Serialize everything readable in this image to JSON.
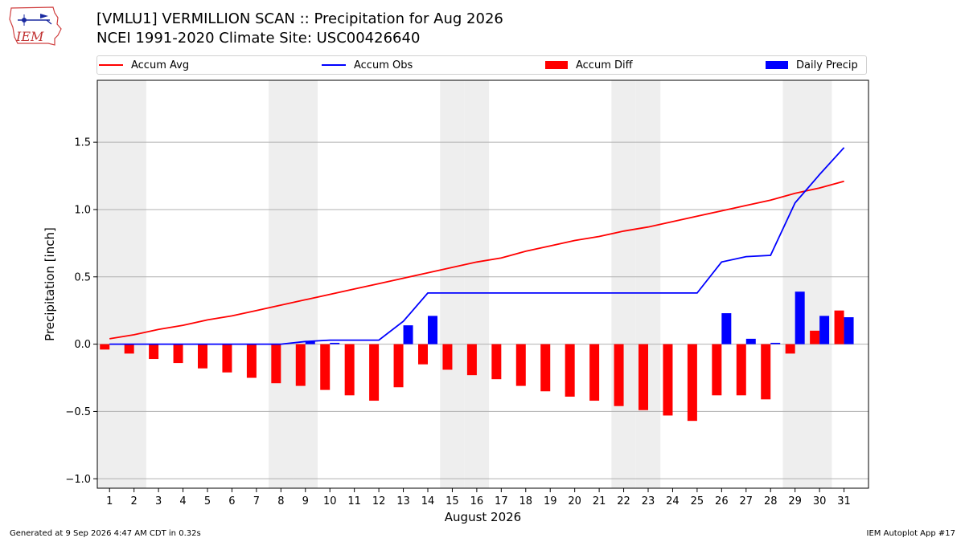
{
  "header": {
    "logo_text": "IEM",
    "title_line1": "[VMLU1] VERMILLION SCAN :: Precipitation for Aug 2026",
    "title_line2": "NCEI 1991-2020 Climate Site: USC00426640"
  },
  "legend": {
    "items": [
      {
        "label": "Accum Avg",
        "kind": "line",
        "color": "#ff0000"
      },
      {
        "label": "Accum Obs",
        "kind": "line",
        "color": "#0000ff"
      },
      {
        "label": "Accum Diff",
        "kind": "patch",
        "color": "#ff0000"
      },
      {
        "label": "Daily Precip",
        "kind": "patch",
        "color": "#0000ff"
      }
    ]
  },
  "chart_data": {
    "type": "bar",
    "xlabel": "August 2026",
    "ylabel": "Precipitation [inch]",
    "ylim": [
      -1.07,
      1.96
    ],
    "yticks": [
      -1.0,
      -0.5,
      0.0,
      0.5,
      1.0,
      1.5
    ],
    "ytick_labels": [
      "−1.0",
      "−0.5",
      "0.0",
      "0.5",
      "1.0",
      "1.5"
    ],
    "grid": true,
    "legend_position": "top",
    "weekend_shading_color": "#eeeeee",
    "weekend_days": [
      1,
      2,
      8,
      9,
      15,
      16,
      22,
      23,
      29,
      30
    ],
    "categories": [
      "1",
      "2",
      "3",
      "4",
      "5",
      "6",
      "7",
      "8",
      "9",
      "10",
      "11",
      "12",
      "13",
      "14",
      "15",
      "16",
      "17",
      "18",
      "19",
      "20",
      "21",
      "22",
      "23",
      "24",
      "25",
      "26",
      "27",
      "28",
      "29",
      "30",
      "31"
    ],
    "series": [
      {
        "name": "Accum Avg",
        "type": "line",
        "color": "#ff0000",
        "values": [
          0.04,
          0.07,
          0.11,
          0.14,
          0.18,
          0.21,
          0.25,
          0.29,
          0.33,
          0.37,
          0.41,
          0.45,
          0.49,
          0.53,
          0.57,
          0.61,
          0.64,
          0.69,
          0.73,
          0.77,
          0.8,
          0.84,
          0.87,
          0.91,
          0.95,
          0.99,
          1.03,
          1.07,
          1.12,
          1.16,
          1.21
        ]
      },
      {
        "name": "Accum Obs",
        "type": "line",
        "color": "#0000ff",
        "values": [
          0,
          0,
          0,
          0,
          0,
          0,
          0,
          0,
          0.02,
          0.03,
          0.03,
          0.03,
          0.17,
          0.38,
          0.38,
          0.38,
          0.38,
          0.38,
          0.38,
          0.38,
          0.38,
          0.38,
          0.38,
          0.38,
          0.38,
          0.61,
          0.65,
          0.66,
          1.05,
          1.26,
          1.46
        ]
      },
      {
        "name": "Accum Diff",
        "type": "bar",
        "color": "#ff0000",
        "values": [
          -0.04,
          -0.07,
          -0.11,
          -0.14,
          -0.18,
          -0.21,
          -0.25,
          -0.29,
          -0.31,
          -0.34,
          -0.38,
          -0.42,
          -0.32,
          -0.15,
          -0.19,
          -0.23,
          -0.26,
          -0.31,
          -0.35,
          -0.39,
          -0.42,
          -0.46,
          -0.49,
          -0.53,
          -0.57,
          -0.38,
          -0.38,
          -0.41,
          -0.07,
          0.1,
          0.25
        ]
      },
      {
        "name": "Daily Precip",
        "type": "bar",
        "color": "#0000ff",
        "values": [
          0,
          0,
          0,
          0,
          0,
          0,
          0,
          0,
          0.02,
          0.01,
          0,
          0,
          0.14,
          0.21,
          0,
          0,
          0,
          0,
          0,
          0,
          0,
          0,
          0,
          0,
          0,
          0.23,
          0.04,
          0.01,
          0.39,
          0.21,
          0.2
        ]
      }
    ]
  },
  "footer": {
    "generated": "Generated at 9 Sep 2026 4:47 AM CDT in 0.32s",
    "app": "IEM Autoplot App #17"
  }
}
